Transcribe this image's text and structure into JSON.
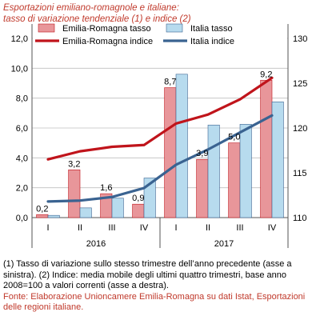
{
  "header": {
    "title_line1": "Esportazioni emiliano-romagnole e italiane:",
    "title_line2": "tasso di variazione tendenziale (1) e indice (2)"
  },
  "notes": {
    "note1": "(1) Tasso di variazione sullo stesso trimestre dell’anno precedente (asse a sinistra). (2) Indice: media mobile degli ultimi quattro trimestri, base anno 2008=100 a valori correnti (asse a destra).",
    "source": "Fonte: Elaborazione Unioncamere Emilia-Romagna su dati Istat, Esportazioni delle regioni italiane."
  },
  "colors": {
    "er_bar": "#e8969a",
    "it_bar": "#b7dbee",
    "er_line": "#c0141b",
    "it_line": "#3a6391",
    "axis": "#555555",
    "grid": "#bfbfbf"
  },
  "chart_data": {
    "type": "bar",
    "categories": [
      "I",
      "II",
      "III",
      "IV",
      "I",
      "II",
      "III",
      "IV"
    ],
    "groups": [
      {
        "label": "2016",
        "span": [
          0,
          3
        ]
      },
      {
        "label": "2017",
        "span": [
          4,
          7
        ]
      }
    ],
    "series": [
      {
        "name": "Emilia-Romagna tasso",
        "kind": "bar",
        "axis": "left",
        "values": [
          0.2,
          3.2,
          1.6,
          0.9,
          8.7,
          3.9,
          5.0,
          9.2
        ]
      },
      {
        "name": "Italia tasso",
        "kind": "bar",
        "axis": "left",
        "values": [
          0.15,
          0.65,
          1.3,
          2.65,
          9.6,
          6.2,
          6.25,
          7.75
        ]
      },
      {
        "name": "Emilia-Romagna indice",
        "kind": "line",
        "axis": "right",
        "values": [
          116.5,
          117.4,
          117.9,
          118.1,
          120.5,
          121.5,
          123.2,
          125.6
        ]
      },
      {
        "name": "Italia indice",
        "kind": "line",
        "axis": "right",
        "values": [
          111.8,
          111.9,
          112.3,
          113.3,
          115.9,
          117.6,
          119.5,
          121.4
        ]
      }
    ],
    "data_labels": [
      {
        "category": 0,
        "text": "0,2"
      },
      {
        "category": 1,
        "text": "3,2"
      },
      {
        "category": 2,
        "text": "1,6"
      },
      {
        "category": 3,
        "text": "0,9"
      },
      {
        "category": 4,
        "text": "8,7"
      },
      {
        "category": 5,
        "text": "3,9"
      },
      {
        "category": 6,
        "text": "5,0"
      },
      {
        "category": 7,
        "text": "9,2"
      }
    ],
    "y_left": {
      "min": 0,
      "max": 12,
      "step": 2,
      "tick_labels": [
        "0,0",
        "2,0",
        "4,0",
        "6,0",
        "8,0",
        "10,0",
        "12,0"
      ]
    },
    "y_right": {
      "min": 110,
      "max": 130,
      "step": 5,
      "tick_labels": [
        "110",
        "115",
        "120",
        "125",
        "130"
      ]
    },
    "grid": true,
    "legend_position": "top"
  }
}
